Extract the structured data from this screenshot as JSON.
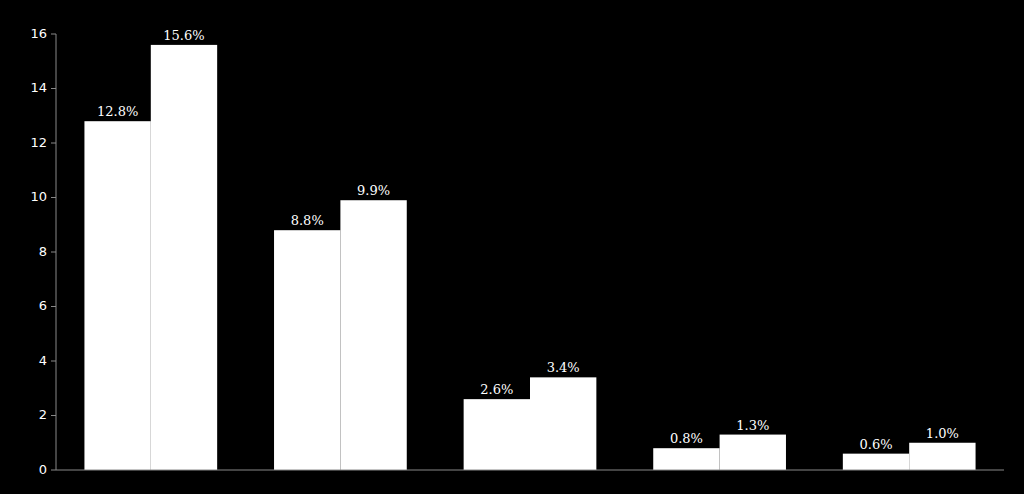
{
  "chart_data": {
    "type": "bar",
    "categories": [
      null,
      null,
      null,
      null,
      null
    ],
    "series": [
      {
        "color": "#ffffff",
        "values": [
          12.8,
          8.8,
          2.6,
          0.8,
          0.6
        ],
        "value_labels": [
          "12.8%",
          "8.8%",
          "2.6%",
          "0.8%",
          "0.6%"
        ]
      },
      {
        "color": "#ffffff",
        "values": [
          15.6,
          9.9,
          3.4,
          1.3,
          1.0
        ],
        "value_labels": [
          "15.6%",
          "9.9%",
          "3.4%",
          "1.3%",
          "1.0%"
        ]
      }
    ],
    "ylim": [
      0,
      16
    ],
    "yticks": [
      0,
      2,
      4,
      6,
      8,
      10,
      12,
      14,
      16
    ],
    "grid": false,
    "data_labels": true,
    "tick_labels": "y"
  }
}
